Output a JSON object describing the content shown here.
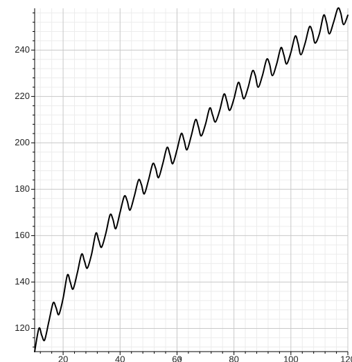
{
  "chart_data": {
    "type": "line",
    "title": "",
    "xlabel": "x",
    "ylabel": "",
    "xlim": [
      10,
      120
    ],
    "ylim": [
      110,
      258
    ],
    "x_ticks": [
      20,
      40,
      60,
      80,
      100,
      120
    ],
    "x_tick_labels": [
      "20",
      "40",
      "60",
      "80",
      "100",
      "120"
    ],
    "y_ticks": [
      120,
      140,
      160,
      180,
      200,
      220,
      240
    ],
    "y_tick_labels": [
      "120",
      "140",
      "160",
      "180",
      "200",
      "220",
      "240"
    ],
    "grid": true,
    "legend": "none",
    "colors": {
      "line": "#000000",
      "grid_major": "#c8c8c8",
      "grid_minor": "#ececec",
      "axis": "#000000",
      "background": "#ffffff"
    },
    "series": [
      {
        "x": [
          10,
          11.5,
          12.5,
          13.5,
          15,
          16.5,
          17.5,
          18.5,
          20,
          21.5,
          22.5,
          23.5,
          25,
          26.5,
          27.5,
          28.5,
          30,
          31.5,
          32.5,
          33.5,
          35,
          36.5,
          37.5,
          38.5,
          40,
          41.5,
          42.5,
          43.5,
          45,
          46.5,
          47.5,
          48.5,
          50,
          51.5,
          52.5,
          53.5,
          55,
          56.5,
          57.5,
          58.5,
          60,
          61.5,
          62.5,
          63.5,
          65,
          66.5,
          67.5,
          68.5,
          70,
          71.5,
          72.5,
          73.5,
          75,
          76.5,
          77.5,
          78.5,
          80,
          81.5,
          82.5,
          83.5,
          85,
          86.5,
          87.5,
          88.5,
          90,
          91.5,
          92.5,
          93.5,
          95,
          96.5,
          97.5,
          98.5,
          100,
          101.5,
          102.5,
          103.5,
          105,
          106.5,
          107.5,
          108.5,
          110,
          111.5,
          112.5,
          113.5,
          115,
          116.5,
          117.5,
          118.5,
          120
        ],
        "y": [
          110,
          120,
          117,
          115,
          123,
          131,
          129,
          126,
          133,
          143,
          140,
          137,
          144,
          152,
          149,
          146,
          152,
          161,
          158,
          155,
          161,
          169,
          167,
          163,
          170,
          177,
          175,
          171,
          177,
          184,
          182,
          178,
          184,
          191,
          189,
          185,
          191,
          198,
          195,
          191,
          197,
          204,
          201,
          197,
          203,
          210,
          207,
          203,
          208,
          215,
          212,
          209,
          214,
          221,
          218,
          214,
          219,
          226,
          223,
          219,
          224,
          231,
          229,
          224,
          229,
          236,
          234,
          229,
          234,
          241,
          238,
          234,
          239,
          246,
          243,
          238,
          243,
          250,
          248,
          243,
          247,
          255,
          252,
          247,
          252,
          258,
          256,
          251,
          255
        ]
      }
    ]
  }
}
